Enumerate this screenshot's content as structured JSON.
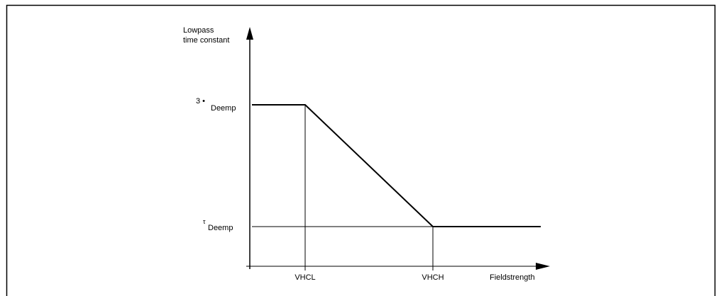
{
  "diagram": {
    "y_axis_label": [
      "Lowpass",
      "time constant"
    ],
    "upper_level": {
      "factor": "3 •",
      "symbol": "Deemp"
    },
    "lower_level": {
      "tau": "τ",
      "symbol": "Deemp"
    },
    "x_markers": [
      "VHCL",
      "VHCH"
    ],
    "x_axis_label": "Fieldstrength"
  }
}
